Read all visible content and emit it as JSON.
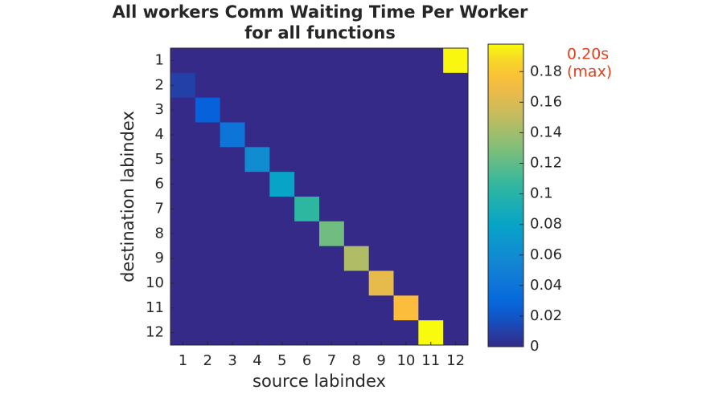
{
  "chart_data": {
    "type": "heatmap",
    "title": [
      "All workers Comm Waiting Time Per Worker",
      "for all functions"
    ],
    "xlabel": "source labindex",
    "ylabel": "destination labindex",
    "x_categories": [
      "1",
      "2",
      "3",
      "4",
      "5",
      "6",
      "7",
      "8",
      "9",
      "10",
      "11",
      "12"
    ],
    "y_categories": [
      "1",
      "2",
      "3",
      "4",
      "5",
      "6",
      "7",
      "8",
      "9",
      "10",
      "11",
      "12"
    ],
    "z": [
      [
        0,
        0,
        0,
        0,
        0,
        0,
        0,
        0,
        0,
        0,
        0,
        0.197
      ],
      [
        0.01,
        0,
        0,
        0,
        0,
        0,
        0,
        0,
        0,
        0,
        0,
        0
      ],
      [
        0,
        0.025,
        0,
        0,
        0,
        0,
        0,
        0,
        0,
        0,
        0,
        0
      ],
      [
        0,
        0,
        0.04,
        0,
        0,
        0,
        0,
        0,
        0,
        0,
        0,
        0
      ],
      [
        0,
        0,
        0,
        0.06,
        0,
        0,
        0,
        0,
        0,
        0,
        0,
        0
      ],
      [
        0,
        0,
        0,
        0,
        0.08,
        0,
        0,
        0,
        0,
        0,
        0,
        0
      ],
      [
        0,
        0,
        0,
        0,
        0,
        0.105,
        0,
        0,
        0,
        0,
        0,
        0
      ],
      [
        0,
        0,
        0,
        0,
        0,
        0,
        0.125,
        0,
        0,
        0,
        0,
        0
      ],
      [
        0,
        0,
        0,
        0,
        0,
        0,
        0,
        0.145,
        0,
        0,
        0,
        0
      ],
      [
        0,
        0,
        0,
        0,
        0,
        0,
        0,
        0,
        0.165,
        0,
        0,
        0
      ],
      [
        0,
        0,
        0,
        0,
        0,
        0,
        0,
        0,
        0,
        0.175,
        0,
        0
      ],
      [
        0,
        0,
        0,
        0,
        0,
        0,
        0,
        0,
        0,
        0,
        0.198,
        0
      ]
    ],
    "colormap": "parula",
    "clim": [
      0,
      0.198
    ],
    "cticks": [
      0,
      0.02,
      0.04,
      0.06,
      0.08,
      0.1,
      0.12,
      0.14,
      0.16,
      0.18
    ],
    "annotations": [
      "0.20s",
      "(max)"
    ],
    "annotation_color": "#e0401c"
  }
}
